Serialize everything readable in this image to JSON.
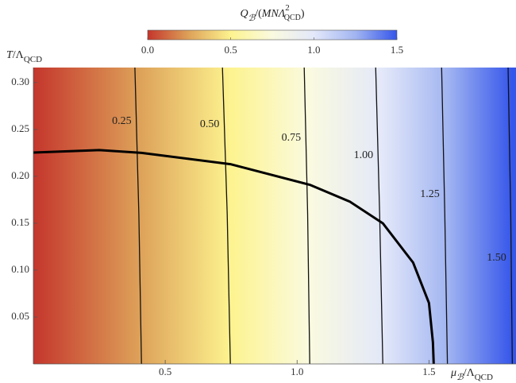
{
  "chart_data": {
    "type": "contour",
    "title": [
      "Q",
      "ℬ",
      "/(",
      "MNΛ",
      "2",
      "QCD",
      ")"
    ],
    "x_label": [
      "μ",
      "ℬ",
      "/Λ",
      "QCD"
    ],
    "y_label": [
      "T",
      "/Λ",
      "QCD"
    ],
    "xlim": [
      0,
      1.83
    ],
    "ylim": [
      0,
      0.316
    ],
    "xticks": [
      0.5,
      {
        "value": 1.0,
        "label": "1.0"
      },
      1.5
    ],
    "yticks": [
      0.05,
      {
        "value": 0.1,
        "label": "0.10"
      },
      0.15,
      {
        "value": 0.2,
        "label": "0.20"
      },
      0.25,
      {
        "value": 0.3,
        "label": "0.30"
      }
    ],
    "clim": [
      0,
      1.5
    ],
    "cticks": [
      {
        "value": 0,
        "label": "0.0"
      },
      0.5,
      {
        "value": 1,
        "label": "1.0"
      },
      1.5
    ],
    "colors": [
      "#c4362c",
      "#dea35a",
      "#fdf38f",
      "#fafae0",
      "#e3e8f9",
      "#a2b5f1",
      "#3556ea"
    ],
    "contours": [
      {
        "level": 0.25,
        "x": [
          0.41,
          0.4,
          0.385
        ],
        "y": [
          0,
          0.16,
          0.316
        ]
      },
      {
        "level": {
          "value": 0.5,
          "label": "0.50"
        },
        "x": [
          0.747,
          0.735,
          0.717
        ],
        "y": [
          0,
          0.16,
          0.316
        ]
      },
      {
        "level": 0.75,
        "x": [
          1.048,
          1.04,
          1.027
        ],
        "y": [
          0,
          0.16,
          0.316
        ]
      },
      {
        "level": {
          "value": 1.0,
          "label": "1.00"
        },
        "x": [
          1.325,
          1.313,
          1.298
        ],
        "y": [
          0,
          0.16,
          0.316
        ]
      },
      {
        "level": 1.25,
        "x": [
          1.57,
          1.56,
          1.548
        ],
        "y": [
          0,
          0.16,
          0.316
        ]
      },
      {
        "level": {
          "value": 1.5,
          "label": "1.50"
        },
        "x": [
          1.816,
          1.81,
          1.8
        ],
        "y": [
          0,
          0.16,
          0.316
        ]
      }
    ],
    "boundary": {
      "x": [
        0,
        0.25,
        0.41,
        0.747,
        1.048,
        1.2,
        1.325,
        1.44,
        1.5,
        1.515,
        1.518
      ],
      "y": [
        0.2253,
        0.228,
        0.225,
        0.213,
        0.191,
        0.173,
        0.15,
        0.108,
        0.065,
        0.023,
        0
      ]
    }
  }
}
